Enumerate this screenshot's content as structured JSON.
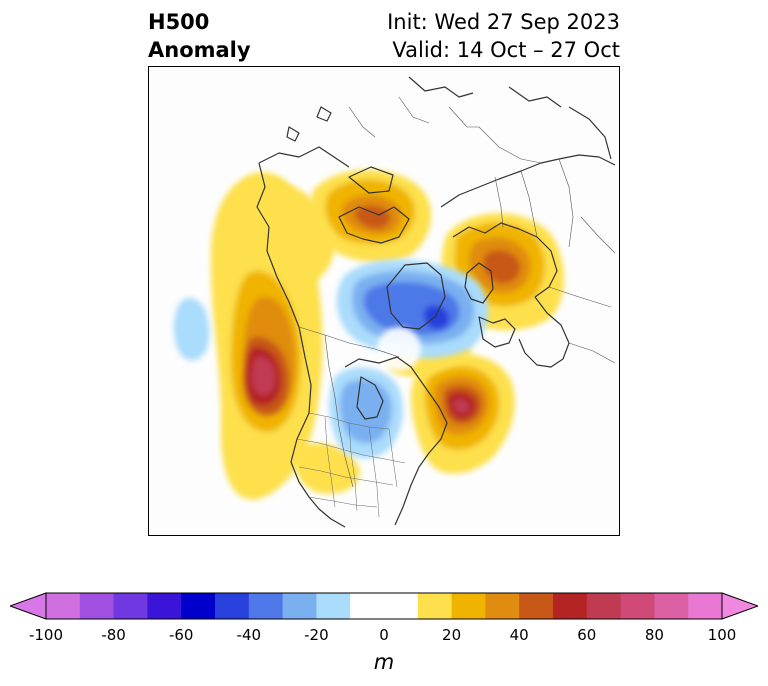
{
  "title": {
    "line1": "H500",
    "line2": "Anomaly",
    "init": "Init: Wed 27 Sep 2023",
    "valid": "Valid: 14 Oct – 27 Oct"
  },
  "colorbar": {
    "unit": "m",
    "min": -100,
    "max": 100,
    "step": 10,
    "tick_labels": [
      "-100",
      "-80",
      "-60",
      "-40",
      "-20",
      "0",
      "20",
      "40",
      "60",
      "80",
      "100"
    ],
    "bin_colors": [
      "#d070e0",
      "#a050e0",
      "#7038e0",
      "#3a14d8",
      "#0000cc",
      "#2840dc",
      "#4e78e8",
      "#7ab0f0",
      "#aadcfc",
      "#ffffff",
      "#ffffff",
      "#fde04c",
      "#f0b400",
      "#e08c10",
      "#c85818",
      "#b42424",
      "#c03a52",
      "#d04a78",
      "#dc60a4",
      "#e878d4"
    ],
    "under_color": "#d878e8",
    "over_color": "#f088e0"
  },
  "map": {
    "projection": "north-polar-stereographic",
    "features": [
      "coastlines",
      "country-borders",
      "us-state-borders"
    ]
  }
}
